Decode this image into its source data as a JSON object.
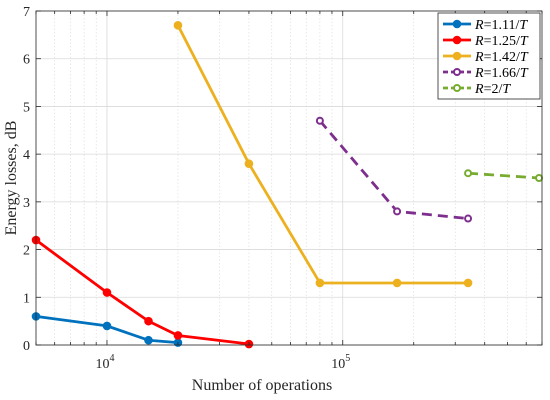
{
  "chart_data": {
    "type": "line",
    "xlabel": "Number of operations",
    "ylabel": "Energy losses, dB",
    "xscale": "log",
    "xlim": [
      5000,
      700000
    ],
    "ylim": [
      0,
      7
    ],
    "grid": true,
    "legend_position": "top-right",
    "x_ticks": [
      {
        "value": 10000,
        "base": "10",
        "exp": "4"
      },
      {
        "value": 100000,
        "base": "10",
        "exp": "5"
      }
    ],
    "y_ticks": [
      0,
      1,
      2,
      3,
      4,
      5,
      6,
      7
    ],
    "series": [
      {
        "legend": {
          "var": "R",
          "value": "=1.11/",
          "unit": "T"
        },
        "color": "#0072BD",
        "marker": "filled",
        "dash": false,
        "points": [
          [
            5000,
            0.6
          ],
          [
            10000,
            0.4
          ],
          [
            15000,
            0.1
          ],
          [
            20000,
            0.05
          ]
        ]
      },
      {
        "legend": {
          "var": "R",
          "value": "=1.25/",
          "unit": "T"
        },
        "color": "#FF0000",
        "marker": "filled",
        "dash": false,
        "points": [
          [
            5000,
            2.2
          ],
          [
            10000,
            1.1
          ],
          [
            15000,
            0.5
          ],
          [
            20000,
            0.2
          ],
          [
            40000,
            0.02
          ]
        ]
      },
      {
        "legend": {
          "var": "R",
          "value": "=1.42/",
          "unit": "T"
        },
        "color": "#EDB120",
        "marker": "filled",
        "dash": false,
        "points": [
          [
            20000,
            6.7
          ],
          [
            40000,
            3.8
          ],
          [
            80000,
            1.3
          ],
          [
            170000,
            1.3
          ],
          [
            340000,
            1.3
          ]
        ]
      },
      {
        "legend": {
          "var": "R",
          "value": "=1.66/",
          "unit": "T"
        },
        "color": "#7E2F8E",
        "marker": "open",
        "dash": true,
        "points": [
          [
            80000,
            4.7
          ],
          [
            170000,
            2.8
          ],
          [
            340000,
            2.65
          ]
        ]
      },
      {
        "legend": {
          "var": "R",
          "value": "=2/",
          "unit": "T"
        },
        "color": "#77AC30",
        "marker": "open",
        "dash": true,
        "points": [
          [
            340000,
            3.6
          ],
          [
            680000,
            3.5
          ]
        ]
      }
    ]
  }
}
